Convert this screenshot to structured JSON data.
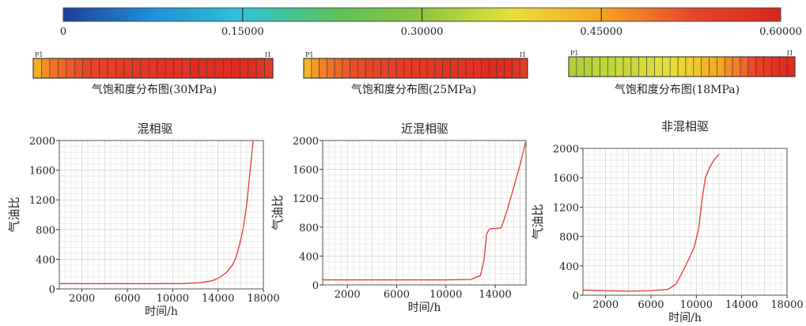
{
  "colorbar": {
    "ticks": [
      "0",
      "0.15000",
      "0.30000",
      "0.45000",
      "0.60000"
    ],
    "colors": [
      "#1f3f9b",
      "#1e90d8",
      "#2ec4d8",
      "#5cc05c",
      "#8dc63f",
      "#e8e03a",
      "#f5a623",
      "#e8472b",
      "#d9251d"
    ]
  },
  "strips": [
    {
      "caption": "气饱和度分布图(30MPa)",
      "start_label": "P1",
      "end_label": "I1",
      "cells": 29,
      "saturation": [
        0.44,
        0.47,
        0.49,
        0.5,
        0.51,
        0.52,
        0.53,
        0.53,
        0.54,
        0.54,
        0.55,
        0.55,
        0.56,
        0.56,
        0.56,
        0.57,
        0.57,
        0.57,
        0.57,
        0.58,
        0.58,
        0.58,
        0.58,
        0.58,
        0.58,
        0.58,
        0.58,
        0.57,
        0.55
      ]
    },
    {
      "caption": "气饱和度分布图(25MPa)",
      "start_label": "P1",
      "end_label": "I1",
      "cells": 29,
      "saturation": [
        0.43,
        0.46,
        0.48,
        0.49,
        0.5,
        0.51,
        0.52,
        0.52,
        0.53,
        0.53,
        0.54,
        0.54,
        0.55,
        0.55,
        0.55,
        0.56,
        0.56,
        0.56,
        0.57,
        0.57,
        0.57,
        0.57,
        0.57,
        0.58,
        0.58,
        0.58,
        0.58,
        0.57,
        0.55
      ]
    },
    {
      "caption": "气饱和度分布图(18MPa)",
      "start_label": "P1",
      "end_label": "I1",
      "cells": 29,
      "saturation": [
        0.33,
        0.33,
        0.33,
        0.34,
        0.34,
        0.34,
        0.35,
        0.35,
        0.35,
        0.36,
        0.36,
        0.37,
        0.37,
        0.38,
        0.39,
        0.4,
        0.41,
        0.43,
        0.44,
        0.45,
        0.47,
        0.48,
        0.5,
        0.52,
        0.54,
        0.55,
        0.57,
        0.58,
        0.58
      ]
    }
  ],
  "chart_data": [
    {
      "type": "line",
      "title": "混相驱",
      "xlabel": "时间/h",
      "ylabel": "气油比",
      "xlim": [
        0,
        18000
      ],
      "ylim": [
        0,
        2000
      ],
      "xticks": [
        "2000",
        "6000",
        "10000",
        "14000",
        "18000"
      ],
      "yticks": [
        "0",
        "400",
        "800",
        "1200",
        "1600",
        "2000"
      ],
      "grid": true,
      "series": [
        {
          "color": "#e8372b",
          "x": [
            0,
            4000,
            8000,
            11000,
            12500,
            13500,
            14200,
            14800,
            15300,
            15600,
            15900,
            16200,
            16500,
            16700,
            16900,
            17100
          ],
          "y": [
            70,
            70,
            70,
            72,
            85,
            110,
            160,
            230,
            330,
            430,
            600,
            800,
            1100,
            1400,
            1700,
            2000
          ]
        }
      ]
    },
    {
      "type": "line",
      "title": "近混相驱",
      "xlabel": "时间/h",
      "ylabel": "气油比",
      "xlim": [
        0,
        16500
      ],
      "ylim": [
        0,
        2000
      ],
      "xticks": [
        "2000",
        "6000",
        "10000",
        "14000"
      ],
      "yticks": [
        "0",
        "400",
        "800",
        "1200",
        "1600",
        "2000"
      ],
      "grid": true,
      "series": [
        {
          "color": "#e8372b",
          "x": [
            0,
            6000,
            10000,
            12000,
            12800,
            13100,
            13300,
            13500,
            13700,
            14000,
            14500,
            15000,
            15500,
            16000,
            16500
          ],
          "y": [
            70,
            70,
            70,
            75,
            130,
            350,
            700,
            770,
            780,
            780,
            790,
            1050,
            1350,
            1650,
            2000
          ]
        }
      ]
    },
    {
      "type": "line",
      "title": "非混相驱",
      "xlabel": "时间/h",
      "ylabel": "气油比",
      "xlim": [
        0,
        18000
      ],
      "ylim": [
        0,
        2000
      ],
      "xticks": [
        "2000",
        "6000",
        "10000",
        "14000",
        "18000"
      ],
      "yticks": [
        "0",
        "400",
        "800",
        "1200",
        "1600",
        "2000"
      ],
      "grid": true,
      "series": [
        {
          "color": "#e8372b",
          "x": [
            0,
            2000,
            4000,
            6000,
            7500,
            8200,
            8800,
            9300,
            9800,
            10200,
            10500,
            10800,
            11200,
            11600,
            12000
          ],
          "y": [
            70,
            60,
            55,
            60,
            80,
            150,
            320,
            480,
            650,
            900,
            1300,
            1600,
            1750,
            1850,
            1920
          ]
        }
      ]
    }
  ]
}
